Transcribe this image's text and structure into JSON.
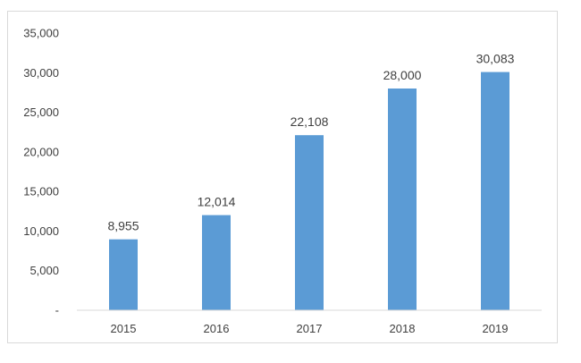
{
  "chart_data": {
    "type": "bar",
    "categories": [
      "2015",
      "2016",
      "2017",
      "2018",
      "2019"
    ],
    "values": [
      8955,
      12014,
      22108,
      28000,
      30083
    ],
    "data_labels": [
      "8,955",
      "12,014",
      "22,108",
      "28,000",
      "30,083"
    ],
    "y_ticks": [
      0,
      5000,
      10000,
      15000,
      20000,
      25000,
      30000,
      35000
    ],
    "y_tick_labels": [
      "-",
      "5,000",
      "10,000",
      "15,000",
      "20,000",
      "25,000",
      "30,000",
      "35,000"
    ],
    "ylim": [
      0,
      35000
    ],
    "title": "",
    "xlabel": "",
    "ylabel": "",
    "grid": false,
    "legend": "none",
    "bar_color": "#5b9bd5",
    "axis_color": "#d9d9d9",
    "text_color": "#404040"
  }
}
